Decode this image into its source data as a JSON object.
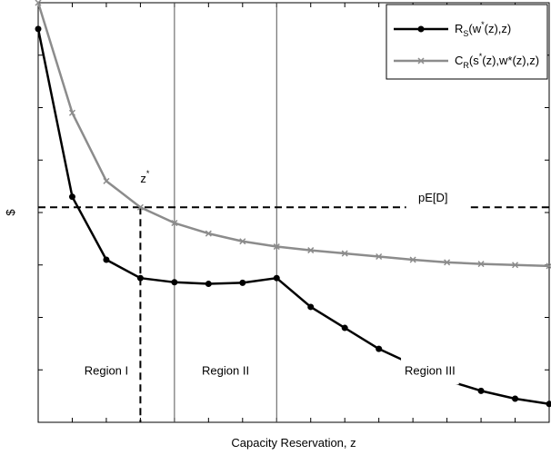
{
  "chart_data": {
    "type": "line",
    "xlabel": "Capacity Reservation, z",
    "ylabel": "$",
    "xlim": [
      0,
      15
    ],
    "ylim": [
      0,
      8
    ],
    "x_ticks": [
      0,
      1,
      2,
      3,
      4,
      5,
      6,
      7,
      8,
      9,
      10,
      11,
      12,
      13,
      14,
      15
    ],
    "y_ticks": [
      0,
      1,
      2,
      3,
      4,
      5,
      6,
      7,
      8
    ],
    "grid": false,
    "legend_position": "top-right",
    "series": [
      {
        "name": "R_S(w*(z),z)",
        "legend_main": "R",
        "legend_sub": "S",
        "legend_a": "(w",
        "legend_sup": "*",
        "legend_b": "(z),z)",
        "color": "#000000",
        "marker": "dot",
        "x": [
          0,
          1,
          2,
          3,
          4,
          5,
          6,
          7,
          8,
          9,
          10,
          11,
          12,
          13,
          14,
          15
        ],
        "y": [
          7.5,
          4.3,
          3.1,
          2.75,
          2.67,
          2.64,
          2.66,
          2.75,
          2.2,
          1.8,
          1.4,
          1.1,
          0.8,
          0.6,
          0.45,
          0.35
        ]
      },
      {
        "name": "C_R(s*(z),w*(z),z)",
        "legend_main": "C",
        "legend_sub": "R",
        "legend_a": "(s",
        "legend_sup": "*",
        "legend_b": "(z),w*(z),z)",
        "color": "#8c8c8c",
        "marker": "x",
        "x": [
          0,
          1,
          2,
          3,
          4,
          5,
          6,
          7,
          8,
          9,
          10,
          11,
          12,
          13,
          14,
          15
        ],
        "y": [
          8.0,
          5.9,
          4.6,
          4.1,
          3.8,
          3.6,
          3.45,
          3.35,
          3.28,
          3.22,
          3.16,
          3.1,
          3.05,
          3.02,
          3.0,
          2.98
        ]
      }
    ],
    "annotations": {
      "pe_line_y": 4.1,
      "pe_label": "pE[D]",
      "zstar_x": 3,
      "zstar_label": "z",
      "zstar_sup": "*",
      "region_dividers_x": [
        4,
        7
      ],
      "regions": [
        {
          "label": "Region I",
          "x": 2.0,
          "y": 1.0
        },
        {
          "label": "Region II",
          "x": 5.5,
          "y": 1.0
        },
        {
          "label": "Region III",
          "x": 11.5,
          "y": 1.0
        }
      ]
    }
  }
}
